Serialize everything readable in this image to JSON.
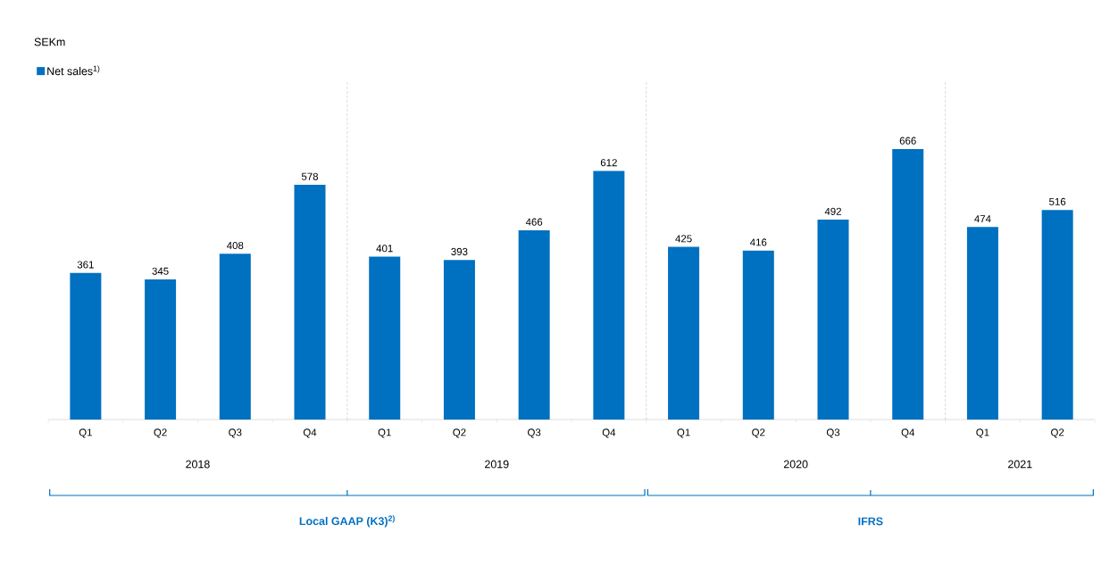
{
  "chart_data": {
    "type": "bar",
    "ylabel": "SEKm",
    "categories": [
      "Q1",
      "Q2",
      "Q3",
      "Q4",
      "Q1",
      "Q2",
      "Q3",
      "Q4",
      "Q1",
      "Q2",
      "Q3",
      "Q4",
      "Q1",
      "Q2"
    ],
    "series": [
      {
        "name": "Net sales$^{1)}$",
        "color": "#0070c0",
        "values": [
          361,
          345,
          408,
          578,
          401,
          393,
          466,
          612,
          425,
          416,
          492,
          666,
          474,
          516
        ]
      }
    ],
    "ylim": [
      0,
      835
    ],
    "data_labels": true,
    "legend": "top left",
    "tick_labels": "x",
    "annotations": [
      "2018",
      "2019",
      "2020",
      "2021",
      "Local GAAP (K3)$^{2)}$",
      "IFRS"
    ]
  }
}
